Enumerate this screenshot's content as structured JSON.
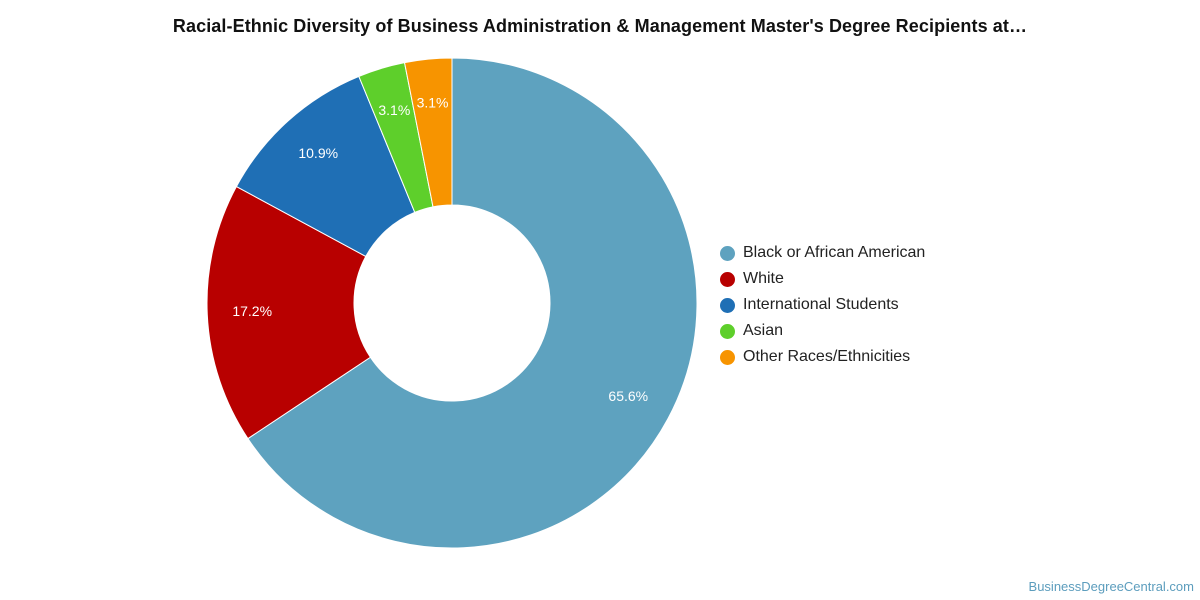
{
  "chart_data": {
    "type": "pie",
    "title": "Racial-Ethnic Diversity of Business Administration & Management Master's Degree Recipients at…",
    "donut": true,
    "legend_position": "right",
    "categories": [
      "Black or African American",
      "White",
      "International Students",
      "Asian",
      "Other Races/Ethnicities"
    ],
    "values": [
      65.6,
      17.2,
      10.9,
      3.1,
      3.1
    ],
    "data_labels": [
      "65.6%",
      "17.2%",
      "10.9%",
      "3.1%",
      "3.1%"
    ],
    "colors": [
      "#5ea2bf",
      "#b80000",
      "#1f6fb5",
      "#5ecf2b",
      "#f79400"
    ]
  },
  "watermark": "BusinessDegreeCentral.com"
}
